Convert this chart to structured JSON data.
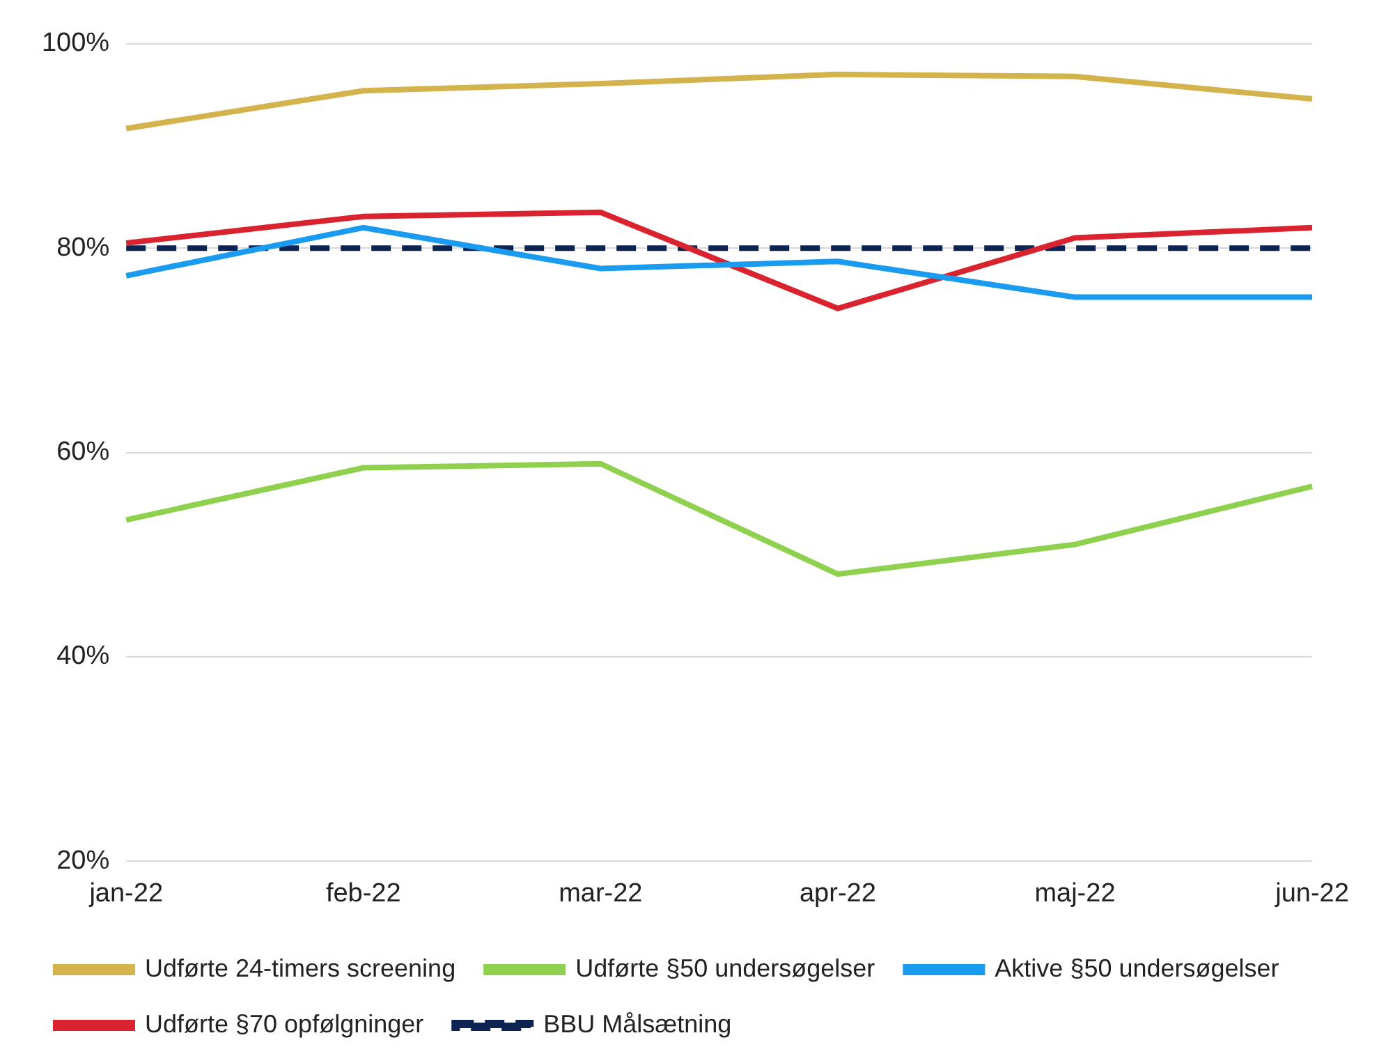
{
  "chart_data": {
    "type": "line",
    "categories": [
      "jan-22",
      "feb-22",
      "mar-22",
      "apr-22",
      "maj-22",
      "jun-22"
    ],
    "series": [
      {
        "name": "Udførte 24-timers screening",
        "color": "#d4b24c",
        "values": [
          91.7,
          95.4,
          96.1,
          97.0,
          96.8,
          94.6
        ]
      },
      {
        "name": "Udførte §50 undersøgelser",
        "color": "#8fd14f",
        "values": [
          53.4,
          58.5,
          58.9,
          48.1,
          51.0,
          56.7
        ]
      },
      {
        "name": "Aktive §50 undersøgelser",
        "color": "#1a9bf0",
        "values": [
          77.3,
          82.0,
          78.0,
          78.7,
          75.2,
          75.2
        ]
      },
      {
        "name": "Udførte §70 opfølgninger",
        "color": "#d9232e",
        "values": [
          80.5,
          83.1,
          83.5,
          74.1,
          81.0,
          82.0
        ]
      },
      {
        "name": "BBU Målsætning",
        "color": "#0d2352",
        "values": [
          80,
          80,
          80,
          80,
          80,
          80
        ],
        "line_style": "dashed"
      }
    ],
    "ylim": [
      20,
      100
    ],
    "yticks": [
      {
        "value": 20,
        "label": "20%"
      },
      {
        "value": 40,
        "label": "40%"
      },
      {
        "value": 60,
        "label": "60%"
      },
      {
        "value": 80,
        "label": "80%"
      },
      {
        "value": 100,
        "label": "100%"
      }
    ],
    "grid": "y",
    "legend": "bottom",
    "marker": "none"
  }
}
